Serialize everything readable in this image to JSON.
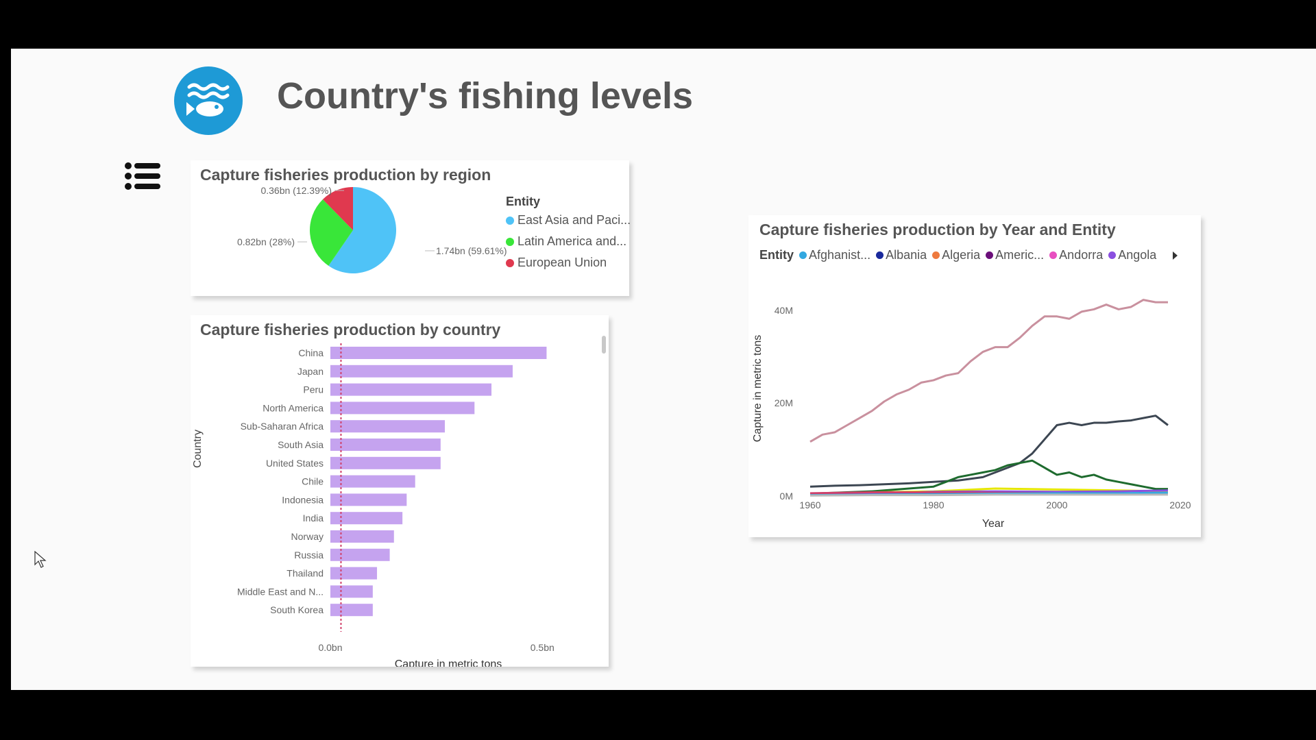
{
  "page": {
    "title": "Country's fishing levels"
  },
  "logo": {
    "icon": "fish-waves-icon",
    "color": "#1e9ad6"
  },
  "menu": {
    "icon": "list-icon"
  },
  "pie_chart": {
    "title": "Capture fisheries production by region",
    "legend_title": "Entity",
    "legend_items": [
      {
        "label": "East Asia and Paci...",
        "color": "#4fc3f7"
      },
      {
        "label": "Latin America and...",
        "color": "#39e639"
      },
      {
        "label": "European Union",
        "color": "#e0394f"
      }
    ],
    "data_labels": [
      "1.74bn (59.61%)",
      "0.82bn (28%)",
      "0.36bn (12.39%)"
    ]
  },
  "bar_chart": {
    "title": "Capture fisheries production by country",
    "y_axis_title": "Country",
    "x_axis_title": "Capture in metric tons",
    "x_ticks": [
      "0.0bn",
      "0.5bn"
    ]
  },
  "line_chart": {
    "title": "Capture fisheries production by Year and Entity",
    "legend_title": "Entity",
    "legend_items": [
      {
        "label": "Afghanist...",
        "color": "#33a8e0"
      },
      {
        "label": "Albania",
        "color": "#1a2a9c"
      },
      {
        "label": "Algeria",
        "color": "#ee7a3f"
      },
      {
        "label": "Americ...",
        "color": "#6b0f7a"
      },
      {
        "label": "Andorra",
        "color": "#e84fc0"
      },
      {
        "label": "Angola",
        "color": "#8a4fe0"
      }
    ],
    "y_axis_title": "Capture in metric tons",
    "x_axis_title": "Year",
    "y_ticks": [
      "40M",
      "20M",
      "0M"
    ],
    "x_ticks": [
      "1960",
      "1980",
      "2000",
      "2020"
    ]
  },
  "chart_data": [
    {
      "type": "pie",
      "title": "Capture fisheries production by region",
      "legend_title": "Entity",
      "slices": [
        {
          "label": "East Asia and Pacific",
          "value": 1.74,
          "percent": 59.61,
          "color": "#4fc3f7"
        },
        {
          "label": "Latin America and Caribbean",
          "value": 0.82,
          "percent": 28.0,
          "color": "#39e639"
        },
        {
          "label": "European Union",
          "value": 0.36,
          "percent": 12.39,
          "color": "#e0394f"
        }
      ],
      "unit": "bn"
    },
    {
      "type": "bar",
      "orientation": "horizontal",
      "title": "Capture fisheries production by country",
      "categories": [
        "China",
        "Japan",
        "Peru",
        "North America",
        "Sub-Saharan Africa",
        "South Asia",
        "United States",
        "Chile",
        "Indonesia",
        "India",
        "Norway",
        "Russia",
        "Thailand",
        "Middle East and N...",
        "South Korea"
      ],
      "values": [
        0.51,
        0.43,
        0.38,
        0.34,
        0.27,
        0.26,
        0.26,
        0.2,
        0.18,
        0.17,
        0.15,
        0.14,
        0.11,
        0.1,
        0.1
      ],
      "xlabel": "Capture in metric tons",
      "ylabel": "Country",
      "xlim": [
        0,
        0.54
      ],
      "unit": "bn",
      "reference_line": 0.025,
      "bar_color": "#c5a3ef",
      "reference_color": "#d0406a"
    },
    {
      "type": "line",
      "title": "Capture fisheries production by Year and Entity",
      "xlabel": "Year",
      "ylabel": "Capture in metric tons",
      "xlim": [
        1958,
        2020
      ],
      "ylim": [
        0,
        42
      ],
      "y_unit": "M",
      "series": [
        {
          "color": "#c9909e",
          "x": [
            1960,
            1962,
            1964,
            1966,
            1968,
            1970,
            1972,
            1974,
            1976,
            1978,
            1980,
            1982,
            1984,
            1986,
            1988,
            1990,
            1992,
            1994,
            1996,
            1998,
            2000,
            2002,
            2004,
            2006,
            2008,
            2010,
            2012,
            2014,
            2016,
            2018
          ],
          "values": [
            11.5,
            13.0,
            13.5,
            15.0,
            16.5,
            18.0,
            20.0,
            21.5,
            22.5,
            24.0,
            24.5,
            25.5,
            26.0,
            28.5,
            30.5,
            31.5,
            31.5,
            33.5,
            36.0,
            38.0,
            38.0,
            37.5,
            39.0,
            39.5,
            40.5,
            39.5,
            40.0,
            41.5,
            41.0,
            41.0
          ]
        },
        {
          "color": "#3c4652",
          "x": [
            1960,
            1964,
            1968,
            1972,
            1976,
            1980,
            1984,
            1988,
            1990,
            1992,
            1994,
            1996,
            1998,
            2000,
            2002,
            2004,
            2006,
            2008,
            2010,
            2012,
            2014,
            2016,
            2018
          ],
          "values": [
            2.0,
            2.2,
            2.3,
            2.5,
            2.7,
            3.0,
            3.3,
            4.0,
            5.0,
            6.0,
            7.0,
            9.0,
            12.0,
            15.0,
            15.5,
            15.0,
            15.5,
            15.5,
            15.8,
            16.0,
            16.5,
            17.0,
            15.0
          ]
        },
        {
          "color": "#1e6b2e",
          "x": [
            1960,
            1970,
            1980,
            1982,
            1984,
            1986,
            1988,
            1990,
            1992,
            1994,
            1996,
            1998,
            2000,
            2002,
            2004,
            2006,
            2008,
            2010,
            2012,
            2014,
            2016,
            2018
          ],
          "values": [
            0.5,
            1.0,
            2.0,
            3.0,
            4.0,
            4.5,
            5.0,
            5.5,
            6.5,
            7.0,
            7.5,
            6.0,
            4.5,
            5.0,
            4.0,
            4.5,
            3.5,
            3.0,
            2.5,
            2.0,
            1.5,
            1.5
          ]
        },
        {
          "color": "#e6e600",
          "x": [
            1960,
            1970,
            1980,
            1990,
            2000,
            2010,
            2018
          ],
          "values": [
            0.3,
            0.8,
            1.0,
            1.6,
            1.4,
            1.2,
            1.0
          ]
        },
        {
          "color": "#8a4fe0",
          "x": [
            1960,
            1970,
            1980,
            1990,
            2000,
            2010,
            2018
          ],
          "values": [
            0.4,
            0.5,
            0.9,
            1.0,
            0.9,
            1.0,
            1.2
          ]
        },
        {
          "color": "#d0406a",
          "x": [
            1960,
            1970,
            1980,
            1990,
            2000,
            2010,
            2018
          ],
          "values": [
            0.6,
            0.8,
            0.8,
            0.7,
            0.6,
            0.6,
            0.5
          ]
        },
        {
          "color": "#33a8e0",
          "x": [
            1960,
            1970,
            1980,
            1990,
            2000,
            2010,
            2018
          ],
          "values": [
            0.2,
            0.3,
            0.4,
            0.5,
            0.6,
            0.6,
            0.7
          ]
        },
        {
          "color": "#b9b9b9",
          "x": [
            1960,
            1970,
            1980,
            1990,
            2000,
            2010,
            2018
          ],
          "values": [
            0.1,
            0.2,
            0.2,
            0.3,
            0.3,
            0.3,
            0.3
          ]
        }
      ]
    }
  ]
}
